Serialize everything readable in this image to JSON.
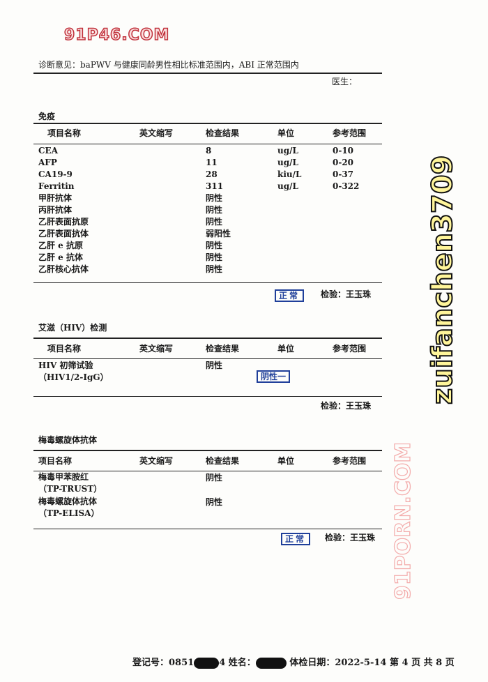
{
  "watermarks": {
    "top": "91P46.COM",
    "diagonal": "91PORN.COM",
    "large": "zuifanchen3709"
  },
  "diagnosis": "诊断意见：baPWV 与健康同龄男性相比标准范围内，ABI 正常范围内",
  "doctor_label": "医生：",
  "columns": [
    "项目名称",
    "英文缩写",
    "检查结果",
    "单位",
    "参考范围"
  ],
  "immune": {
    "title": "免疫",
    "rows": [
      {
        "name": "CEA",
        "result": "8",
        "unit": "ug/L",
        "range": "0-10"
      },
      {
        "name": "AFP",
        "result": "11",
        "unit": "ug/L",
        "range": "0-20"
      },
      {
        "name": "CA19-9",
        "result": "28",
        "unit": "kiu/L",
        "range": "0-37"
      },
      {
        "name": "Ferritin",
        "result": "311",
        "unit": "ug/L",
        "range": "0-322"
      },
      {
        "name": "甲肝抗体",
        "result": "阴性",
        "unit": "",
        "range": ""
      },
      {
        "name": "丙肝抗体",
        "result": "阴性",
        "unit": "",
        "range": ""
      },
      {
        "name": "乙肝表面抗原",
        "result": "阴性",
        "unit": "",
        "range": ""
      },
      {
        "name": "乙肝表面抗体",
        "result": "弱阳性",
        "unit": "",
        "range": ""
      },
      {
        "name": "乙肝 e 抗原",
        "result": "阴性",
        "unit": "",
        "range": ""
      },
      {
        "name": "乙肝 e 抗体",
        "result": "阴性",
        "unit": "",
        "range": ""
      },
      {
        "name": "乙肝核心抗体",
        "result": "阴性",
        "unit": "",
        "range": ""
      }
    ],
    "stamp": "正常",
    "inspector": "检验：王玉珠"
  },
  "hiv": {
    "title": "艾滋（HIV）检测",
    "rows": [
      {
        "name": "HIV 初筛试验",
        "name2": "（HIV1/2-IgG）",
        "result": "阴性"
      }
    ],
    "stamp": "阴性一",
    "inspector": "检验：王玉珠"
  },
  "syphilis": {
    "title": "梅毒螺旋体抗体",
    "rows": [
      {
        "name": "梅毒甲苯胺红",
        "name2": "（TP-TRUST）",
        "result": "阴性"
      },
      {
        "name": "梅毒螺旋体抗体",
        "name2": "（TP-ELISA）",
        "result": "阴性"
      }
    ],
    "stamp": "正常",
    "inspector": "检验：王玉珠"
  },
  "footer": {
    "reg_label": "登记号：0851",
    "reg_value": "4",
    "name_label": "姓名：",
    "date_label": "体检日期：",
    "date": "2022-5-14",
    "page": "第 4 页",
    "total": "共 8 页"
  }
}
